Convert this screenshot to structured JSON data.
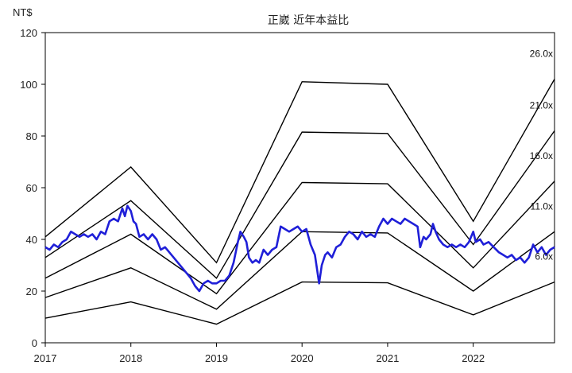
{
  "chart_data": {
    "type": "line",
    "title": "正崴 近年本益比",
    "y_unit": "NT$",
    "xlim": [
      2017,
      2022.95
    ],
    "ylim": [
      0,
      120
    ],
    "x_ticks": [
      "2017",
      "2018",
      "2019",
      "2020",
      "2021",
      "2022"
    ],
    "y_ticks": [
      "0",
      "20",
      "40",
      "60",
      "80",
      "100",
      "120"
    ],
    "grid": false,
    "pe_bands": [
      {
        "label": "26.0x",
        "points": [
          [
            2017,
            41
          ],
          [
            2018,
            68
          ],
          [
            2019,
            31
          ],
          [
            2020,
            101
          ],
          [
            2021,
            100
          ],
          [
            2022,
            47
          ],
          [
            2022.95,
            102
          ]
        ]
      },
      {
        "label": "21.0x",
        "points": [
          [
            2017,
            33
          ],
          [
            2018,
            55
          ],
          [
            2019,
            25
          ],
          [
            2020,
            81.5
          ],
          [
            2021,
            81
          ],
          [
            2022,
            38
          ],
          [
            2022.95,
            82
          ]
        ]
      },
      {
        "label": "16.0x",
        "points": [
          [
            2017,
            25
          ],
          [
            2018,
            42
          ],
          [
            2019,
            19
          ],
          [
            2020,
            62
          ],
          [
            2021,
            61.5
          ],
          [
            2022,
            29
          ],
          [
            2022.95,
            62.5
          ]
        ]
      },
      {
        "label": "11.0x",
        "points": [
          [
            2017,
            17.5
          ],
          [
            2018,
            29
          ],
          [
            2019,
            13
          ],
          [
            2020,
            43
          ],
          [
            2021,
            42.5
          ],
          [
            2022,
            20
          ],
          [
            2022.95,
            43
          ]
        ]
      },
      {
        "label": "6.0x",
        "points": [
          [
            2017,
            9.5
          ],
          [
            2018,
            15.8
          ],
          [
            2019,
            7.2
          ],
          [
            2020,
            23.5
          ],
          [
            2021,
            23.2
          ],
          [
            2022,
            10.8
          ],
          [
            2022.95,
            23.5
          ]
        ]
      }
    ],
    "price_series": {
      "color": "#1f1fd8",
      "points": [
        [
          2017,
          37
        ],
        [
          2017.05,
          36
        ],
        [
          2017.1,
          38
        ],
        [
          2017.15,
          37
        ],
        [
          2017.2,
          39
        ],
        [
          2017.25,
          40
        ],
        [
          2017.3,
          43
        ],
        [
          2017.35,
          42
        ],
        [
          2017.4,
          41
        ],
        [
          2017.45,
          42
        ],
        [
          2017.5,
          41
        ],
        [
          2017.55,
          42
        ],
        [
          2017.6,
          40
        ],
        [
          2017.65,
          43
        ],
        [
          2017.7,
          42
        ],
        [
          2017.75,
          47
        ],
        [
          2017.8,
          48
        ],
        [
          2017.85,
          47
        ],
        [
          2017.9,
          52
        ],
        [
          2017.93,
          49
        ],
        [
          2017.96,
          53
        ],
        [
          2018,
          51
        ],
        [
          2018.03,
          47
        ],
        [
          2018.06,
          46
        ],
        [
          2018.1,
          41
        ],
        [
          2018.15,
          42
        ],
        [
          2018.2,
          40
        ],
        [
          2018.25,
          42
        ],
        [
          2018.3,
          40
        ],
        [
          2018.35,
          36
        ],
        [
          2018.4,
          37
        ],
        [
          2018.45,
          35
        ],
        [
          2018.5,
          33
        ],
        [
          2018.55,
          31
        ],
        [
          2018.6,
          29
        ],
        [
          2018.65,
          27
        ],
        [
          2018.7,
          25
        ],
        [
          2018.75,
          22
        ],
        [
          2018.8,
          20
        ],
        [
          2018.85,
          23
        ],
        [
          2018.9,
          24
        ],
        [
          2018.95,
          23
        ],
        [
          2019,
          23
        ],
        [
          2019.05,
          24
        ],
        [
          2019.1,
          24
        ],
        [
          2019.15,
          26
        ],
        [
          2019.2,
          31
        ],
        [
          2019.25,
          39
        ],
        [
          2019.28,
          43
        ],
        [
          2019.32,
          41
        ],
        [
          2019.35,
          39
        ],
        [
          2019.38,
          33
        ],
        [
          2019.42,
          31
        ],
        [
          2019.46,
          32
        ],
        [
          2019.5,
          31
        ],
        [
          2019.55,
          36
        ],
        [
          2019.6,
          34
        ],
        [
          2019.65,
          36
        ],
        [
          2019.7,
          37
        ],
        [
          2019.75,
          45
        ],
        [
          2019.8,
          44
        ],
        [
          2019.85,
          43
        ],
        [
          2019.9,
          44
        ],
        [
          2019.95,
          45
        ],
        [
          2020,
          43
        ],
        [
          2020.05,
          44
        ],
        [
          2020.1,
          38
        ],
        [
          2020.15,
          34
        ],
        [
          2020.2,
          23
        ],
        [
          2020.23,
          30
        ],
        [
          2020.27,
          34
        ],
        [
          2020.3,
          35
        ],
        [
          2020.35,
          33
        ],
        [
          2020.4,
          37
        ],
        [
          2020.45,
          38
        ],
        [
          2020.5,
          41
        ],
        [
          2020.55,
          43
        ],
        [
          2020.6,
          42
        ],
        [
          2020.65,
          40
        ],
        [
          2020.7,
          43
        ],
        [
          2020.75,
          41
        ],
        [
          2020.8,
          42
        ],
        [
          2020.85,
          41
        ],
        [
          2020.9,
          45
        ],
        [
          2020.95,
          48
        ],
        [
          2021,
          46
        ],
        [
          2021.05,
          48
        ],
        [
          2021.1,
          47
        ],
        [
          2021.15,
          46
        ],
        [
          2021.2,
          48
        ],
        [
          2021.25,
          47
        ],
        [
          2021.3,
          46
        ],
        [
          2021.35,
          45
        ],
        [
          2021.38,
          37
        ],
        [
          2021.42,
          41
        ],
        [
          2021.45,
          40
        ],
        [
          2021.5,
          42
        ],
        [
          2021.53,
          46
        ],
        [
          2021.56,
          43
        ],
        [
          2021.6,
          40
        ],
        [
          2021.65,
          38
        ],
        [
          2021.7,
          37
        ],
        [
          2021.75,
          38
        ],
        [
          2021.8,
          37
        ],
        [
          2021.85,
          38
        ],
        [
          2021.9,
          37
        ],
        [
          2021.95,
          39
        ],
        [
          2022,
          43
        ],
        [
          2022.03,
          39
        ],
        [
          2022.08,
          40
        ],
        [
          2022.12,
          38
        ],
        [
          2022.18,
          39
        ],
        [
          2022.24,
          37
        ],
        [
          2022.3,
          35
        ],
        [
          2022.35,
          34
        ],
        [
          2022.4,
          33
        ],
        [
          2022.45,
          34
        ],
        [
          2022.5,
          32
        ],
        [
          2022.55,
          33
        ],
        [
          2022.6,
          31
        ],
        [
          2022.65,
          33
        ],
        [
          2022.7,
          38
        ],
        [
          2022.75,
          35
        ],
        [
          2022.8,
          37
        ],
        [
          2022.85,
          34
        ],
        [
          2022.9,
          36
        ],
        [
          2022.95,
          37
        ]
      ]
    }
  }
}
